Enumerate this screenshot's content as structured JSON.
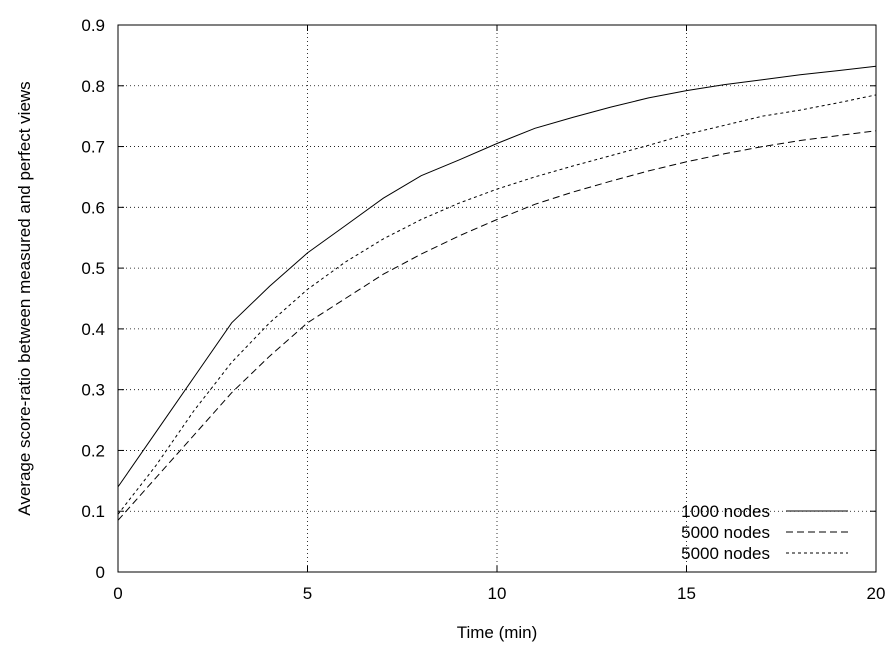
{
  "chart_data": {
    "type": "line",
    "title": "",
    "xlabel": "Time (min)",
    "ylabel": "Average score-ratio between measured and perfect views",
    "xlim": [
      0,
      20
    ],
    "ylim": [
      0,
      0.9
    ],
    "x_ticks": [
      "0",
      "5",
      "10",
      "15",
      "20"
    ],
    "y_ticks": [
      "0",
      "0.1",
      "0.2",
      "0.3",
      "0.4",
      "0.5",
      "0.6",
      "0.7",
      "0.8",
      "0.9"
    ],
    "grid": true,
    "legend_position": "bottom-right",
    "x": [
      0,
      1,
      2,
      3,
      4,
      5,
      6,
      7,
      8,
      9,
      10,
      11,
      12,
      13,
      14,
      15,
      16,
      17,
      18,
      19,
      20
    ],
    "series": [
      {
        "name": "1000 nodes",
        "style": "solid",
        "values": [
          0.14,
          0.23,
          0.32,
          0.41,
          0.47,
          0.525,
          0.57,
          0.615,
          0.652,
          0.678,
          0.705,
          0.73,
          0.748,
          0.765,
          0.78,
          0.792,
          0.802,
          0.81,
          0.818,
          0.825,
          0.832
        ]
      },
      {
        "name": "5000 nodes",
        "style": "dashed",
        "values": [
          0.085,
          0.155,
          0.225,
          0.295,
          0.355,
          0.41,
          0.45,
          0.49,
          0.523,
          0.553,
          0.58,
          0.605,
          0.625,
          0.643,
          0.66,
          0.675,
          0.688,
          0.7,
          0.71,
          0.718,
          0.726
        ]
      },
      {
        "name": "5000 nodes",
        "style": "dotted",
        "values": [
          0.095,
          0.175,
          0.265,
          0.345,
          0.41,
          0.465,
          0.51,
          0.548,
          0.58,
          0.607,
          0.63,
          0.65,
          0.668,
          0.685,
          0.702,
          0.72,
          0.735,
          0.75,
          0.76,
          0.772,
          0.785
        ]
      }
    ]
  }
}
